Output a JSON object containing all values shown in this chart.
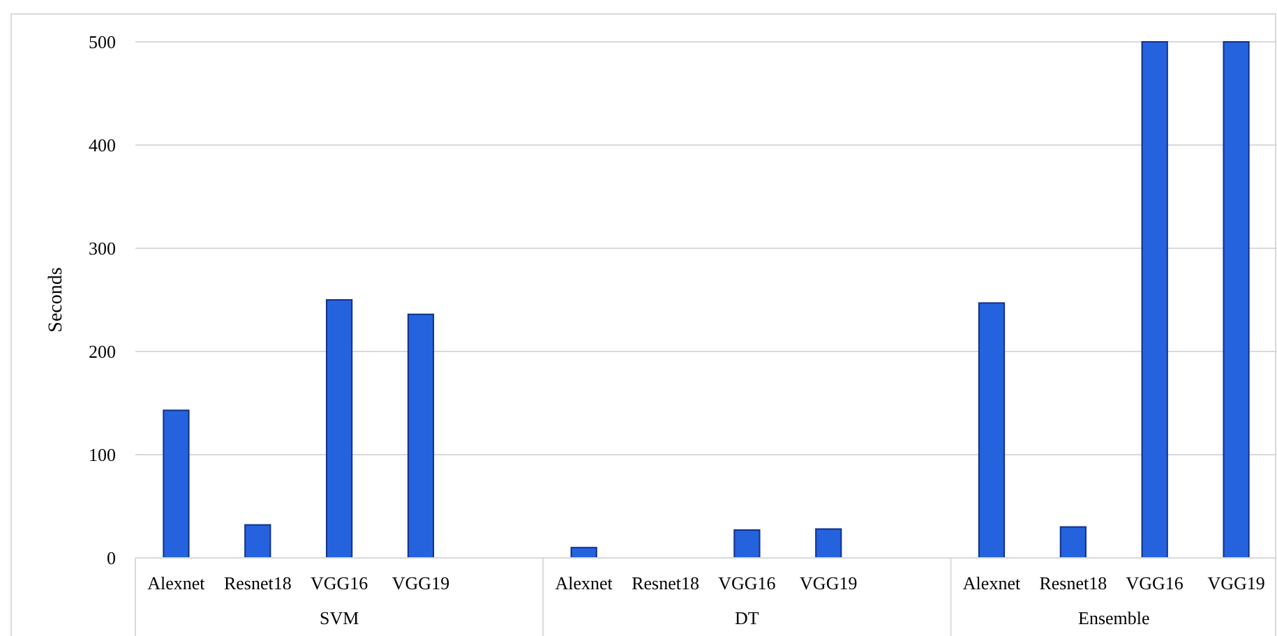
{
  "chart_data": {
    "type": "bar",
    "ylabel": "Seconds",
    "categories": [
      "Alexnet",
      "Resnet18",
      "VGG16",
      "VGG19",
      null,
      "Alexnet",
      "Resnet18",
      "VGG16",
      "VGG19",
      null,
      "Alexnet",
      "Resnet18",
      "VGG16",
      "VGG19"
    ],
    "values": [
      143,
      32,
      250,
      236,
      null,
      10,
      0,
      27,
      28,
      null,
      247,
      30,
      500,
      500
    ],
    "color": "#2563de",
    "annotations": [
      "SVM",
      "DT",
      "Ensemble"
    ],
    "ylim": [
      0,
      500
    ],
    "yticks": [
      0,
      100,
      200,
      300,
      400,
      500
    ],
    "grid": "y"
  }
}
